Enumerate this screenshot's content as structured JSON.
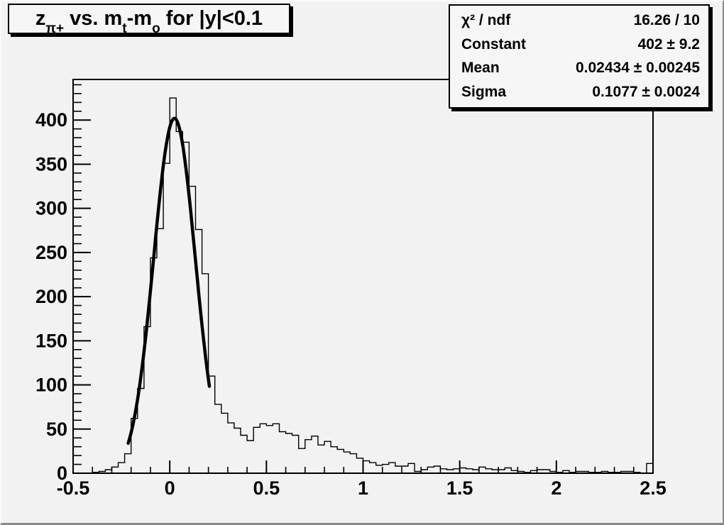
{
  "title": {
    "text": "z_π+ vs. m_t-m_o for |y|<0.1",
    "z": "z",
    "z_sub": "π+",
    "mid": " vs. m",
    "t_sub": "t",
    "dash": "-m",
    "o_sub": "o",
    "rest": " for |y|<0.1"
  },
  "stats": {
    "rows": [
      {
        "label": "χ² / ndf",
        "value": "16.26 / 10"
      },
      {
        "label": "Constant",
        "value": "402 ± 9.2"
      },
      {
        "label": "Mean",
        "value": "0.02434 ± 0.00245"
      },
      {
        "label": "Sigma",
        "value": "0.1077 ± 0.0024"
      }
    ]
  },
  "chart_data": {
    "type": "bar",
    "subtype": "step-histogram",
    "title": "z_π+ vs. m_t-m_o for |y|<0.1",
    "xlabel": "",
    "ylabel": "",
    "x_min": -0.5,
    "x_max": 2.5,
    "n_bins": 90,
    "counts": [
      0,
      0,
      0,
      1,
      2,
      4,
      7,
      12,
      22,
      62,
      96,
      166,
      244,
      277,
      351,
      425,
      387,
      375,
      325,
      276,
      226,
      110,
      78,
      68,
      57,
      51,
      43,
      37,
      52,
      56,
      54,
      56,
      47,
      45,
      43,
      28,
      38,
      42,
      32,
      36,
      30,
      27,
      24,
      22,
      17,
      14,
      12,
      9,
      10,
      12,
      8,
      8,
      11,
      2,
      4,
      7,
      8,
      5,
      4,
      5,
      6,
      5,
      4,
      7,
      5,
      4,
      4,
      6,
      3,
      2,
      1,
      3,
      4,
      4,
      2,
      1,
      3,
      1,
      2,
      2,
      1,
      1,
      2,
      1,
      1,
      2,
      2,
      1,
      0,
      11
    ],
    "fit": {
      "type": "gaussian",
      "constant": 402,
      "mean": 0.02434,
      "sigma": 0.1077,
      "draw_range": [
        -0.215,
        0.205
      ]
    },
    "x_ticks_major": [
      -0.5,
      0,
      0.5,
      1,
      1.5,
      2,
      2.5
    ],
    "x_tick_labels": [
      "-0.5",
      "0",
      "0.5",
      "1",
      "1.5",
      "2",
      "2.5"
    ],
    "x_minor_step": 0.1,
    "y_ticks_major": [
      0,
      50,
      100,
      150,
      200,
      250,
      300,
      350,
      400
    ],
    "y_minor_step": 10,
    "y_max": 446,
    "ylim": [
      0,
      446
    ],
    "grid": false,
    "legend": "none",
    "colors": {
      "line": "#000000",
      "fit": "#000000",
      "background": "#f2f2f2"
    }
  }
}
